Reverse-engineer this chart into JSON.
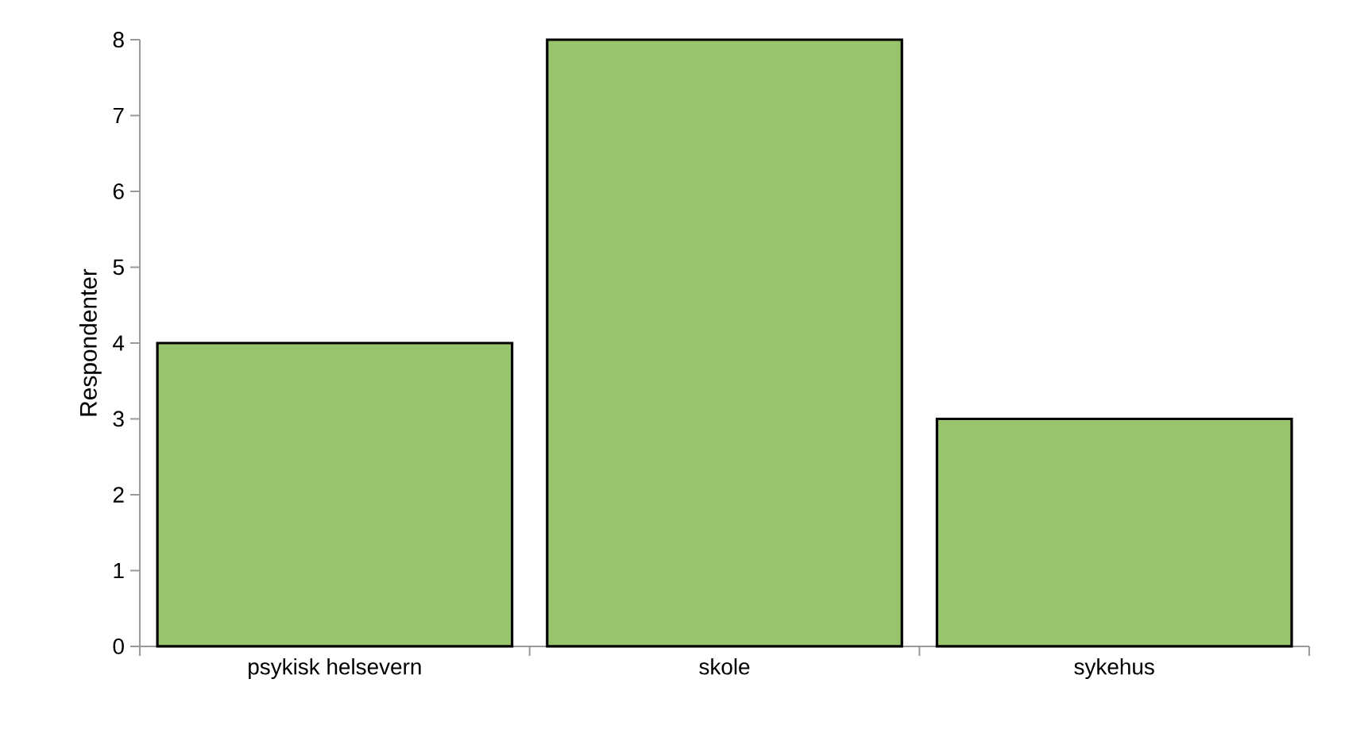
{
  "chart_data": {
    "type": "bar",
    "ylabel": "Respondenter",
    "categories": [
      "psykisk helsevern",
      "skole",
      "sykehus"
    ],
    "values": [
      4,
      8,
      3
    ],
    "color": "#98c46e",
    "ylim": [
      0,
      8
    ],
    "yticks": [
      0,
      1,
      2,
      3,
      4,
      5,
      6,
      7,
      8
    ]
  }
}
